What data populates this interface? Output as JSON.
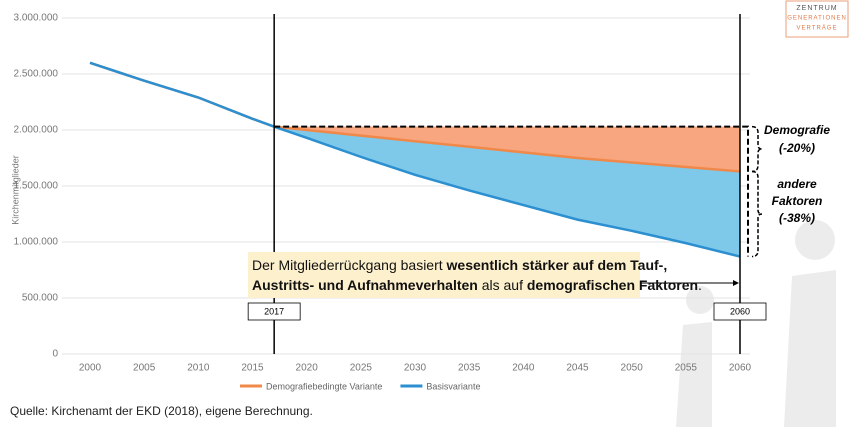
{
  "chart_data": {
    "type": "line",
    "y_label": "Kirchenmitglieder",
    "x": [
      2000,
      2005,
      2010,
      2015,
      2017,
      2020,
      2025,
      2030,
      2035,
      2040,
      2045,
      2050,
      2055,
      2060
    ],
    "series": [
      {
        "name": "Demografiebedingte Variante",
        "color": "#f0884a",
        "fill": "#f7a67f",
        "values": [
          2600000,
          2440000,
          2290000,
          2100000,
          2030000,
          2000000,
          1950000,
          1900000,
          1850000,
          1800000,
          1750000,
          1710000,
          1670000,
          1630000
        ]
      },
      {
        "name": "Basisvariante",
        "color": "#2b8fd0",
        "fill": "#7ec8ea",
        "values": [
          2600000,
          2440000,
          2290000,
          2100000,
          2030000,
          1930000,
          1760000,
          1600000,
          1460000,
          1330000,
          1200000,
          1100000,
          990000,
          870000
        ]
      }
    ],
    "xlim": [
      2000,
      2060
    ],
    "xticks": [
      2000,
      2005,
      2010,
      2015,
      2020,
      2025,
      2030,
      2035,
      2040,
      2045,
      2050,
      2055,
      2060
    ],
    "ylim": [
      0,
      3000000
    ],
    "yticks": [
      {
        "value": 0,
        "label": "0"
      },
      {
        "value": 500000,
        "label": "500.000"
      },
      {
        "value": 1000000,
        "label": "1.000.000"
      },
      {
        "value": 1500000,
        "label": "1.500.000"
      },
      {
        "value": 2000000,
        "label": "2.000.000"
      },
      {
        "value": 2500000,
        "label": "2.500.000"
      },
      {
        "value": 3000000,
        "label": "3.000.000"
      }
    ],
    "grid": true,
    "vlines": [
      2017,
      2060
    ],
    "annotations": [
      {
        "lines": [
          "Demografie",
          "(-20%)"
        ]
      },
      {
        "lines": [
          "andere",
          "Faktoren",
          "(-38%)"
        ]
      }
    ],
    "note": [
      [
        {
          "text": "Der Mitgliederrückgang basiert ",
          "bold": false
        },
        {
          "text": "wesentlich stärker auf dem Tauf-,",
          "bold": true
        }
      ],
      [
        {
          "text": "Austritts- und Aufnahmeverhalten",
          "bold": true
        },
        {
          "text": " als auf ",
          "bold": false
        },
        {
          "text": "demografischen Faktoren",
          "bold": true
        },
        {
          "text": ".",
          "bold": false
        }
      ]
    ],
    "legend": "bottom"
  },
  "source": "Quelle: Kirchenamt der EKD (2018), eigene Berechnung.",
  "logo": [
    "ZENTRUM",
    "GENERATIONEN",
    "VERTRÄGE"
  ]
}
